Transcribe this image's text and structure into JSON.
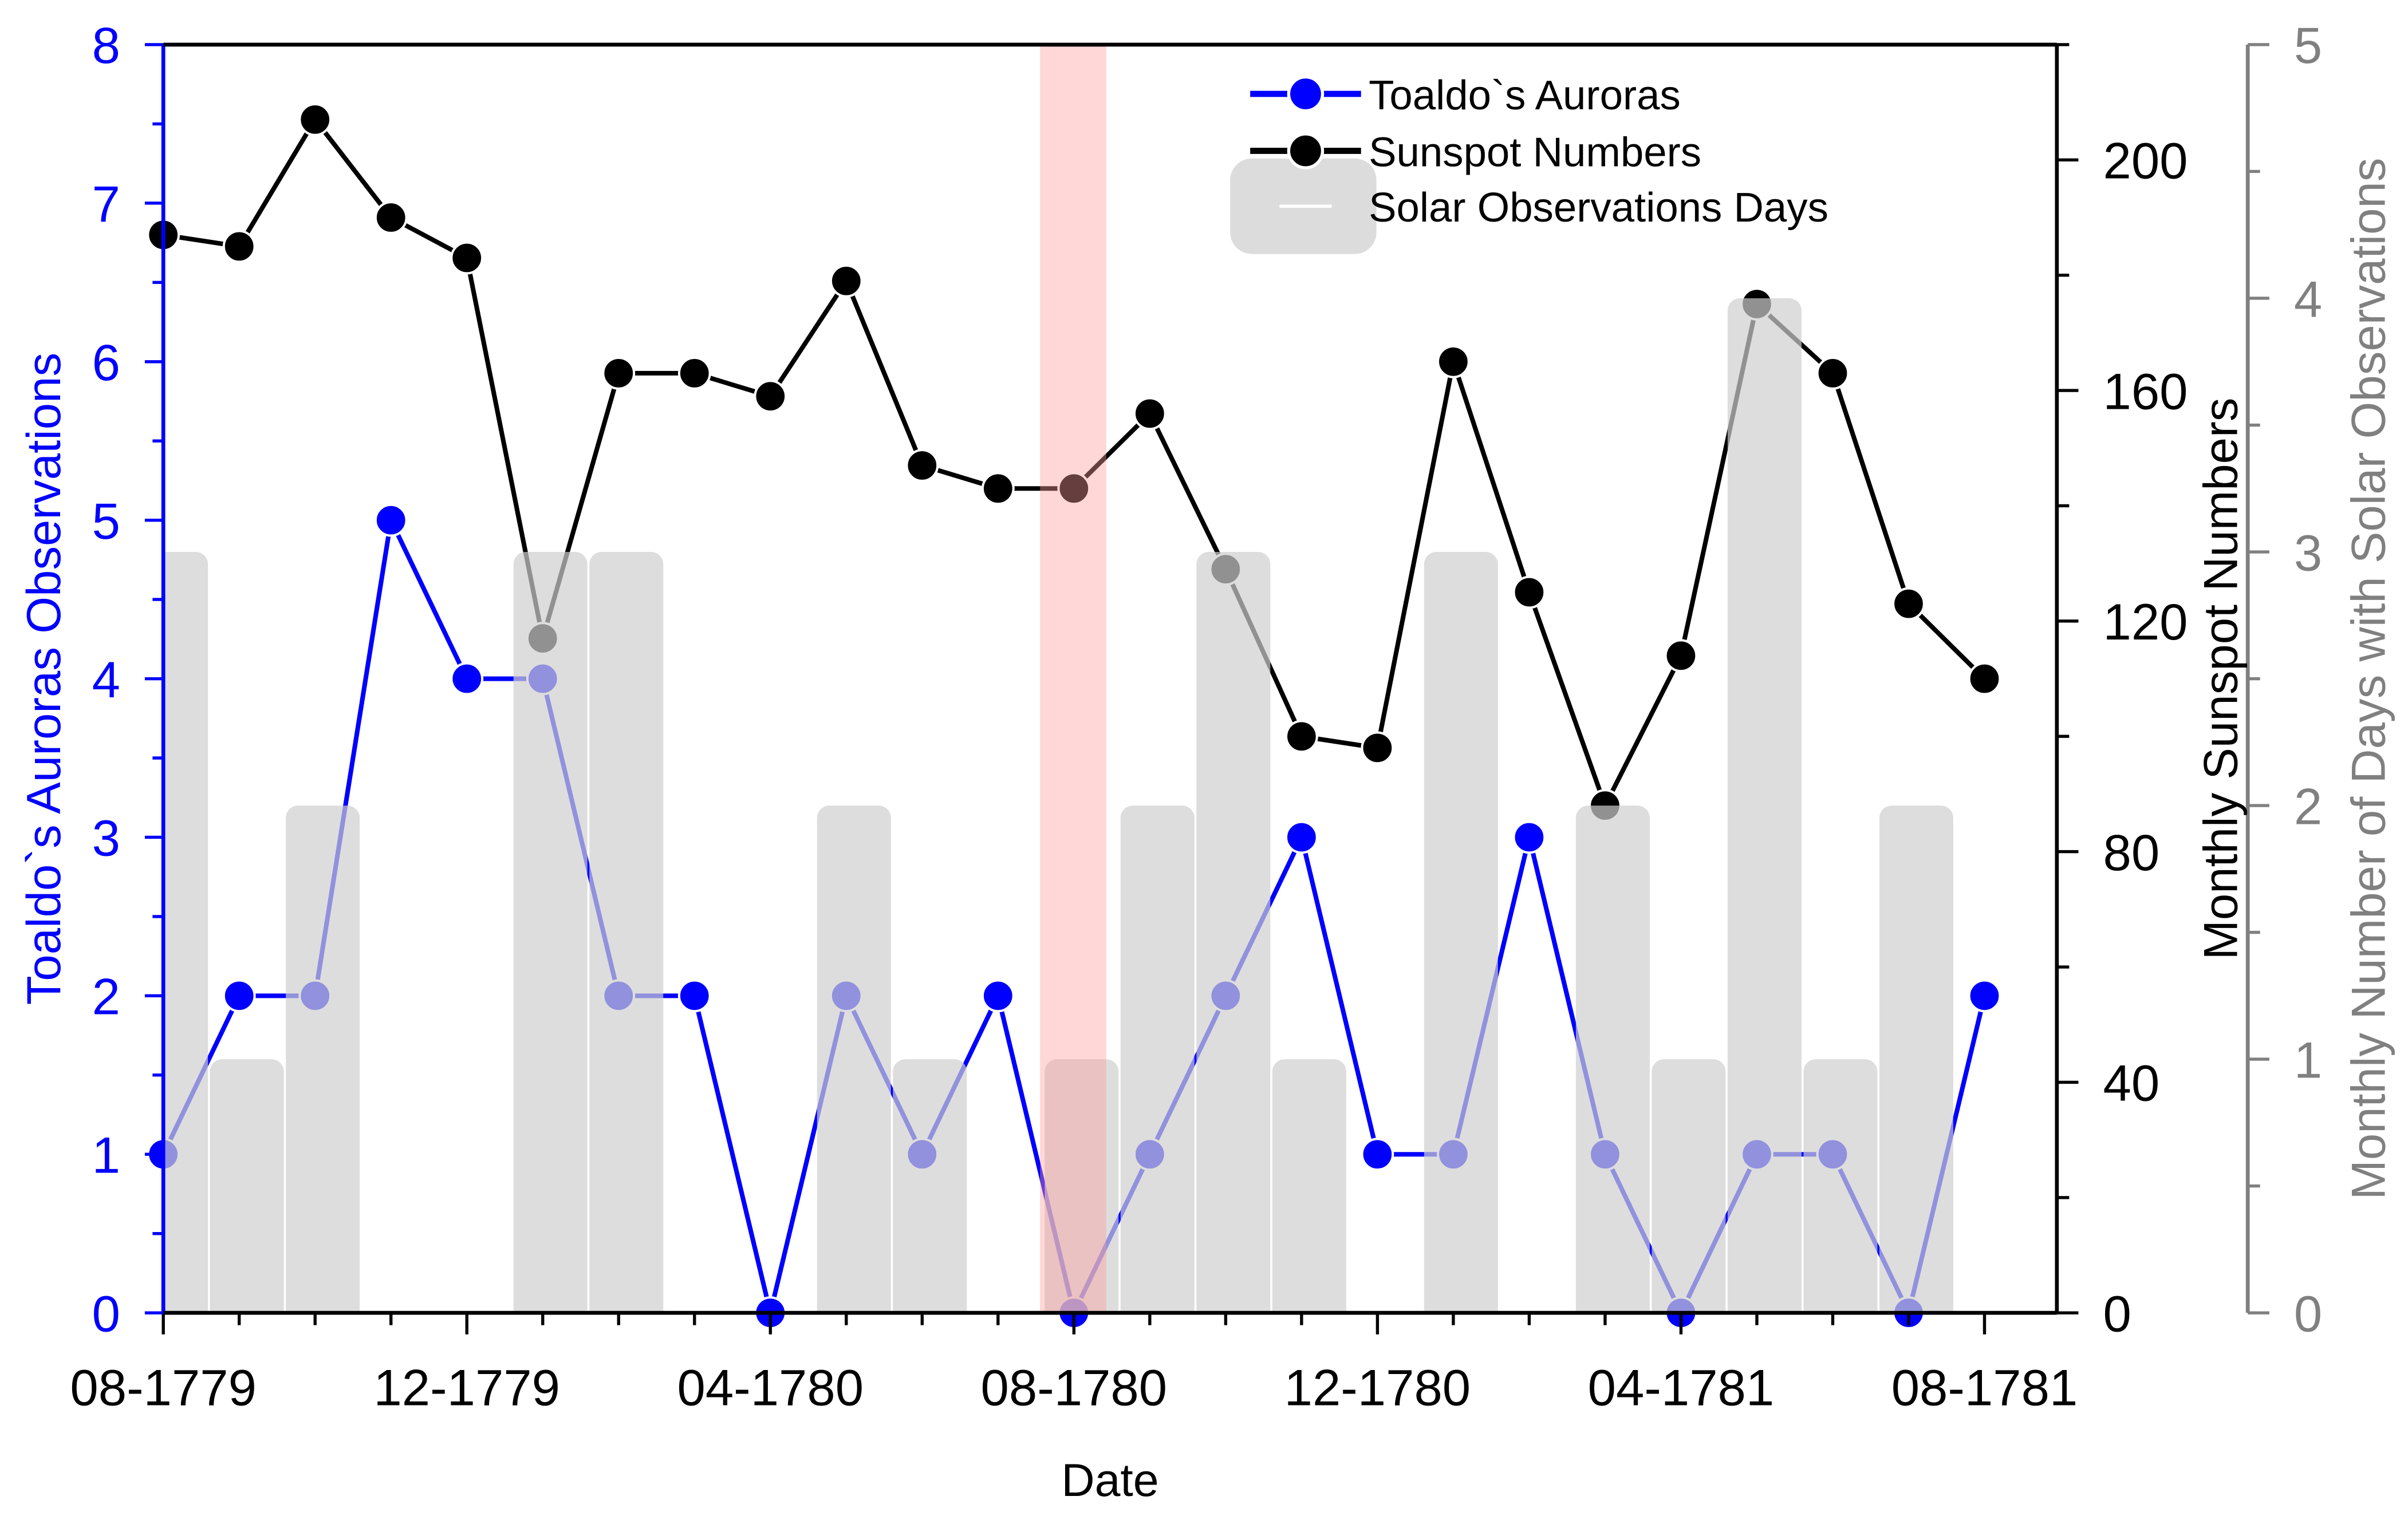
{
  "chart_data": {
    "type": "line",
    "xlabel": "Date",
    "x_categories": [
      "08-1779",
      "09-1779",
      "10-1779",
      "11-1779",
      "12-1779",
      "01-1780",
      "02-1780",
      "03-1780",
      "04-1780",
      "05-1780",
      "06-1780",
      "07-1780",
      "08-1780",
      "09-1780",
      "10-1780",
      "11-1780",
      "12-1780",
      "01-1781",
      "02-1781",
      "03-1781",
      "04-1781",
      "05-1781",
      "06-1781",
      "07-1781",
      "08-1781"
    ],
    "x_tick_labels": [
      "08-1779",
      "12-1779",
      "04-1780",
      "08-1780",
      "12-1780",
      "04-1781",
      "08-1781"
    ],
    "highlight_category": "08-1780",
    "axes": {
      "left": {
        "label": "Toaldo`s Auroras Observations",
        "range": [
          0,
          8
        ],
        "ticks": [
          "0",
          "1",
          "2",
          "3",
          "4",
          "5",
          "6",
          "7",
          "8"
        ],
        "color": "#0000ff"
      },
      "right": {
        "label": "Monthly Sunspot Numbers",
        "range": [
          0,
          220
        ],
        "ticks": [
          "0",
          "40",
          "80",
          "120",
          "160",
          "200"
        ],
        "color": "#000000"
      },
      "right2": {
        "label": "Monthly Number of Days with Solar Observations",
        "range": [
          0,
          5
        ],
        "ticks": [
          "0",
          "1",
          "2",
          "3",
          "4",
          "5"
        ],
        "color": "#808080"
      }
    },
    "legend": {
      "position": "top-center",
      "entries": [
        "Toaldo`s Auroras",
        "Sunspot Numbers",
        "Solar Observations Days"
      ]
    },
    "series": [
      {
        "name": "Toaldo`s Auroras",
        "type": "line",
        "axis": "left",
        "color": "#0000ff",
        "values": [
          1,
          2,
          2,
          5,
          4,
          4,
          2,
          2,
          0,
          2,
          1,
          2,
          0,
          1,
          2,
          3,
          1,
          1,
          3,
          1,
          0,
          1,
          1,
          0,
          2
        ]
      },
      {
        "name": "Sunspot Numbers",
        "type": "line",
        "axis": "right",
        "color": "#000000",
        "values": [
          187,
          185,
          207,
          190,
          183,
          117,
          163,
          163,
          159,
          179,
          147,
          143,
          143,
          156,
          129,
          100,
          98,
          165,
          125,
          88,
          114,
          175,
          163,
          123,
          110
        ]
      },
      {
        "name": "Solar Observations Days",
        "type": "bar",
        "axis": "right2",
        "color": "#d9d9d9",
        "values": [
          3,
          1,
          2,
          0,
          0,
          3,
          3,
          0,
          0,
          2,
          1,
          0,
          1,
          2,
          3,
          1,
          0,
          3,
          0,
          2,
          1,
          4,
          1,
          2,
          0
        ]
      }
    ]
  }
}
